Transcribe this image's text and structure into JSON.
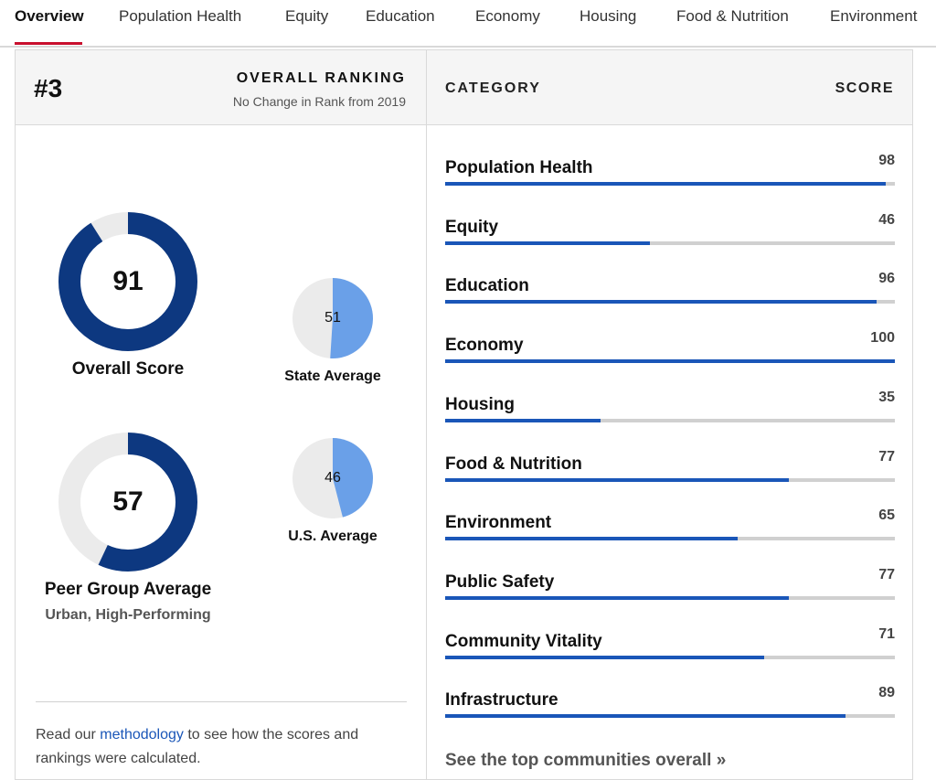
{
  "nav": {
    "tabs": [
      "Overview",
      "Population Health",
      "Equity",
      "Education",
      "Economy",
      "Housing",
      "Food & Nutrition",
      "Environment"
    ],
    "active": "Overview"
  },
  "ranking": {
    "rank": "#3",
    "title": "OVERALL RANKING",
    "subtitle": "No Change in Rank from 2019"
  },
  "scores": {
    "overall": {
      "value": "91",
      "label": "Overall Score",
      "fraction": 0.91
    },
    "state": {
      "value": "51",
      "label": "State Average",
      "fraction": 0.51
    },
    "peer": {
      "value": "57",
      "label": "Peer Group Average",
      "sublabel": "Urban, High-Performing",
      "fraction": 0.57
    },
    "us": {
      "value": "46",
      "label": "U.S. Average",
      "fraction": 0.46
    }
  },
  "methodology": {
    "before": "Read our ",
    "link": "methodology",
    "after": " to see how the scores and rankings were calculated."
  },
  "categories_header": {
    "category": "CATEGORY",
    "score": "SCORE"
  },
  "categories": [
    {
      "name": "Population Health",
      "score": "98",
      "fraction": 0.98
    },
    {
      "name": "Equity",
      "score": "46",
      "fraction": 0.455
    },
    {
      "name": "Education",
      "score": "96",
      "fraction": 0.96
    },
    {
      "name": "Economy",
      "score": "100",
      "fraction": 1.0
    },
    {
      "name": "Housing",
      "score": "35",
      "fraction": 0.345
    },
    {
      "name": "Food & Nutrition",
      "score": "77",
      "fraction": 0.765
    },
    {
      "name": "Environment",
      "score": "65",
      "fraction": 0.65
    },
    {
      "name": "Public Safety",
      "score": "77",
      "fraction": 0.765
    },
    {
      "name": "Community Vitality",
      "score": "71",
      "fraction": 0.71
    },
    {
      "name": "Infrastructure",
      "score": "89",
      "fraction": 0.89
    }
  ],
  "see_top": "See the top communities overall »",
  "colors": {
    "dark_blue": "#0d3880",
    "light_blue": "#6aa0e8",
    "bar_blue": "#1a56b8",
    "track_gray": "#ebebeb",
    "accent_red": "#c8102e"
  }
}
